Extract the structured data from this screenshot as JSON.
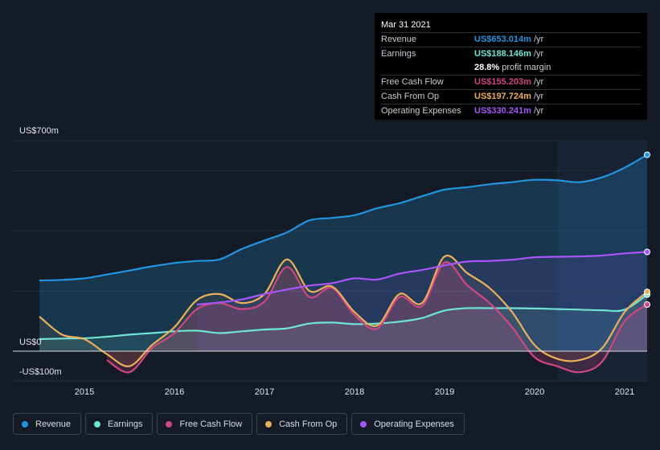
{
  "chart_data": {
    "type": "area",
    "y_tick_labels": [
      "US$700m",
      "US$0",
      "-US$100m"
    ],
    "ylim": [
      -100,
      700
    ],
    "x_tick_labels": [
      "2015",
      "2016",
      "2017",
      "2018",
      "2019",
      "2020",
      "2021"
    ],
    "xlim": [
      2014.5,
      2021.25
    ],
    "highlight_start": 2020.25,
    "series": [
      {
        "name": "Revenue",
        "color": "#2394df",
        "points": [
          [
            2014.5,
            235
          ],
          [
            2014.75,
            237
          ],
          [
            2015.0,
            242
          ],
          [
            2015.25,
            255
          ],
          [
            2015.5,
            268
          ],
          [
            2015.75,
            282
          ],
          [
            2016.0,
            293
          ],
          [
            2016.25,
            300
          ],
          [
            2016.5,
            305
          ],
          [
            2016.75,
            340
          ],
          [
            2017.0,
            368
          ],
          [
            2017.25,
            395
          ],
          [
            2017.5,
            435
          ],
          [
            2017.75,
            443
          ],
          [
            2018.0,
            452
          ],
          [
            2018.25,
            475
          ],
          [
            2018.5,
            492
          ],
          [
            2018.75,
            515
          ],
          [
            2019.0,
            537
          ],
          [
            2019.25,
            545
          ],
          [
            2019.5,
            555
          ],
          [
            2019.75,
            562
          ],
          [
            2020.0,
            570
          ],
          [
            2020.25,
            568
          ],
          [
            2020.5,
            562
          ],
          [
            2020.75,
            578
          ],
          [
            2021.0,
            610
          ],
          [
            2021.25,
            653
          ]
        ]
      },
      {
        "name": "Earnings",
        "color": "#6fe3d4",
        "points": [
          [
            2014.5,
            40
          ],
          [
            2014.75,
            42
          ],
          [
            2015.0,
            43
          ],
          [
            2015.25,
            48
          ],
          [
            2015.5,
            55
          ],
          [
            2015.75,
            60
          ],
          [
            2016.0,
            66
          ],
          [
            2016.25,
            68
          ],
          [
            2016.5,
            60
          ],
          [
            2016.75,
            66
          ],
          [
            2017.0,
            72
          ],
          [
            2017.25,
            76
          ],
          [
            2017.5,
            92
          ],
          [
            2017.75,
            95
          ],
          [
            2018.0,
            90
          ],
          [
            2018.25,
            92
          ],
          [
            2018.5,
            98
          ],
          [
            2018.75,
            110
          ],
          [
            2019.0,
            135
          ],
          [
            2019.25,
            143
          ],
          [
            2019.5,
            143
          ],
          [
            2019.75,
            143
          ],
          [
            2020.0,
            142
          ],
          [
            2020.25,
            140
          ],
          [
            2020.5,
            138
          ],
          [
            2020.75,
            136
          ],
          [
            2021.0,
            138
          ],
          [
            2021.25,
            188
          ]
        ]
      },
      {
        "name": "Free Cash Flow",
        "color": "#d0467f",
        "points": [
          [
            2015.25,
            -30
          ],
          [
            2015.5,
            -70
          ],
          [
            2015.75,
            10
          ],
          [
            2016.0,
            60
          ],
          [
            2016.25,
            140
          ],
          [
            2016.5,
            160
          ],
          [
            2016.75,
            140
          ],
          [
            2017.0,
            165
          ],
          [
            2017.25,
            280
          ],
          [
            2017.5,
            180
          ],
          [
            2017.75,
            210
          ],
          [
            2018.0,
            120
          ],
          [
            2018.25,
            75
          ],
          [
            2018.5,
            180
          ],
          [
            2018.75,
            150
          ],
          [
            2019.0,
            295
          ],
          [
            2019.25,
            220
          ],
          [
            2019.5,
            160
          ],
          [
            2019.75,
            80
          ],
          [
            2020.0,
            -20
          ],
          [
            2020.25,
            -50
          ],
          [
            2020.5,
            -70
          ],
          [
            2020.75,
            -35
          ],
          [
            2021.0,
            100
          ],
          [
            2021.25,
            155
          ]
        ]
      },
      {
        "name": "Cash From Op",
        "color": "#e9b05c",
        "points": [
          [
            2014.5,
            115
          ],
          [
            2014.75,
            55
          ],
          [
            2015.0,
            40
          ],
          [
            2015.25,
            -10
          ],
          [
            2015.5,
            -50
          ],
          [
            2015.75,
            20
          ],
          [
            2016.0,
            80
          ],
          [
            2016.25,
            170
          ],
          [
            2016.5,
            190
          ],
          [
            2016.75,
            160
          ],
          [
            2017.0,
            190
          ],
          [
            2017.25,
            305
          ],
          [
            2017.5,
            200
          ],
          [
            2017.75,
            215
          ],
          [
            2018.0,
            130
          ],
          [
            2018.25,
            85
          ],
          [
            2018.5,
            190
          ],
          [
            2018.75,
            160
          ],
          [
            2019.0,
            315
          ],
          [
            2019.25,
            260
          ],
          [
            2019.5,
            210
          ],
          [
            2019.75,
            130
          ],
          [
            2020.0,
            20
          ],
          [
            2020.25,
            -25
          ],
          [
            2020.5,
            -30
          ],
          [
            2020.75,
            10
          ],
          [
            2021.0,
            130
          ],
          [
            2021.25,
            197
          ]
        ]
      },
      {
        "name": "Operating Expenses",
        "color": "#a855f7",
        "points": [
          [
            2016.25,
            155
          ],
          [
            2016.5,
            162
          ],
          [
            2016.75,
            172
          ],
          [
            2017.0,
            190
          ],
          [
            2017.25,
            205
          ],
          [
            2017.5,
            218
          ],
          [
            2017.75,
            226
          ],
          [
            2018.0,
            242
          ],
          [
            2018.25,
            238
          ],
          [
            2018.5,
            258
          ],
          [
            2018.75,
            270
          ],
          [
            2019.0,
            285
          ],
          [
            2019.25,
            298
          ],
          [
            2019.5,
            300
          ],
          [
            2019.75,
            304
          ],
          [
            2020.0,
            312
          ],
          [
            2020.25,
            314
          ],
          [
            2020.5,
            315
          ],
          [
            2020.75,
            318
          ],
          [
            2021.0,
            325
          ],
          [
            2021.25,
            330
          ]
        ]
      }
    ]
  },
  "tooltip": {
    "date": "Mar 31 2021",
    "rows": [
      {
        "label": "Revenue",
        "value": "US$653.014m",
        "unit": "/yr",
        "color": "#2394df"
      },
      {
        "label": "Earnings",
        "value": "US$188.146m",
        "unit": "/yr",
        "color": "#6fe3d4"
      },
      {
        "label": "",
        "value": "28.8%",
        "unit": "profit margin",
        "color": "#ffffff"
      },
      {
        "label": "Free Cash Flow",
        "value": "US$155.203m",
        "unit": "/yr",
        "color": "#d0467f"
      },
      {
        "label": "Cash From Op",
        "value": "US$197.724m",
        "unit": "/yr",
        "color": "#e9b05c"
      },
      {
        "label": "Operating Expenses",
        "value": "US$330.241m",
        "unit": "/yr",
        "color": "#a855f7"
      }
    ]
  },
  "legend": [
    {
      "label": "Revenue",
      "color": "#2394df"
    },
    {
      "label": "Earnings",
      "color": "#6fe3d4"
    },
    {
      "label": "Free Cash Flow",
      "color": "#d0467f"
    },
    {
      "label": "Cash From Op",
      "color": "#e9b05c"
    },
    {
      "label": "Operating Expenses",
      "color": "#a855f7"
    }
  ]
}
